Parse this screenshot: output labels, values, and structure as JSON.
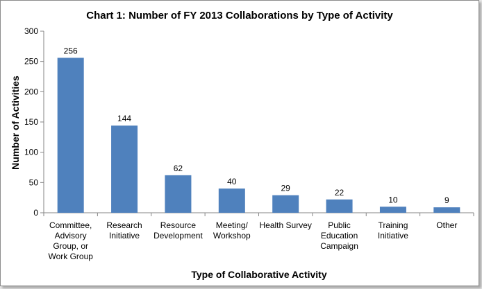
{
  "chart_data": {
    "type": "bar",
    "title": "Chart 1: Number of FY 2013 Collaborations by Type of Activity",
    "xlabel": "Type of Collaborative Activity",
    "ylabel": "Number of Activities",
    "ylim": [
      0,
      300
    ],
    "yticks": [
      0,
      50,
      100,
      150,
      200,
      250,
      300
    ],
    "grid": false,
    "legend": "none",
    "bar_color": "#4f81bd",
    "categories": [
      [
        "Committee,",
        "Advisory",
        "Group, or",
        "Work Group"
      ],
      [
        "Research",
        "Initiative"
      ],
      [
        "Resource",
        "Development"
      ],
      [
        "Meeting/",
        "Workshop"
      ],
      [
        "Health Survey"
      ],
      [
        "Public",
        "Education",
        "Campaign"
      ],
      [
        "Training",
        "Initiative"
      ],
      [
        "Other"
      ]
    ],
    "values": [
      256,
      144,
      62,
      40,
      29,
      22,
      10,
      9
    ]
  }
}
